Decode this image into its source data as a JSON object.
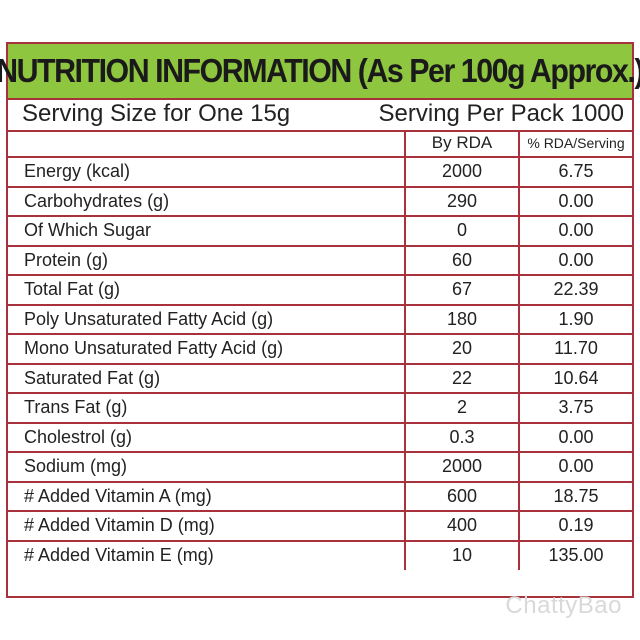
{
  "title": "NUTRITION INFORMATION (As Per 100g Approx.)",
  "serving": {
    "size": "Serving Size for One 15g",
    "per_pack": "Serving Per Pack 1000"
  },
  "columns": {
    "name": "",
    "rda": "By RDA",
    "pct": "% RDA/Serving"
  },
  "rows": [
    {
      "name": "Energy (kcal)",
      "rda": "2000",
      "pct": "6.75"
    },
    {
      "name": "Carbohydrates (g)",
      "rda": "290",
      "pct": "0.00"
    },
    {
      "name": "Of Which Sugar",
      "rda": "0",
      "pct": "0.00"
    },
    {
      "name": "Protein (g)",
      "rda": "60",
      "pct": "0.00"
    },
    {
      "name": "Total Fat (g)",
      "rda": "67",
      "pct": "22.39"
    },
    {
      "name": "Poly Unsaturated Fatty  Acid (g)",
      "rda": "180",
      "pct": "1.90"
    },
    {
      "name": "Mono Unsaturated Fatty Acid (g)",
      "rda": "20",
      "pct": "11.70"
    },
    {
      "name": "Saturated Fat (g)",
      "rda": "22",
      "pct": "10.64"
    },
    {
      "name": "Trans Fat (g)",
      "rda": "2",
      "pct": "3.75"
    },
    {
      "name": "Cholestrol (g)",
      "rda": "0.3",
      "pct": "0.00"
    },
    {
      "name": "Sodium (mg)",
      "rda": "2000",
      "pct": "0.00"
    },
    {
      "name": "# Added Vitamin A (mg)",
      "rda": "600",
      "pct": "18.75"
    },
    {
      "name": "# Added Vitamin D (mg)",
      "rda": "400",
      "pct": "0.19"
    },
    {
      "name": "# Added Vitamin E (mg)",
      "rda": "10",
      "pct": "135.00"
    }
  ],
  "watermark": "ChattyBao",
  "colors": {
    "title_bg": "#8ec63f",
    "border": "#a8323c",
    "text": "#222222"
  }
}
